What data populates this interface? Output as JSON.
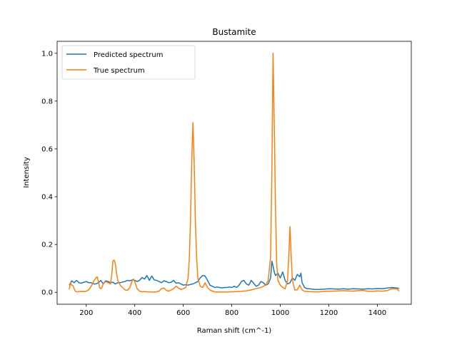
{
  "chart_data": {
    "type": "line",
    "title": "Bustamite",
    "xlabel": "Raman shift (cm^-1)",
    "ylabel": "Intensity",
    "xlim": [
      80,
      1540
    ],
    "ylim": [
      -0.05,
      1.05
    ],
    "xticks": [
      200,
      400,
      600,
      800,
      1000,
      1200,
      1400
    ],
    "yticks": [
      0.0,
      0.2,
      0.4,
      0.6,
      0.8,
      1.0
    ],
    "grid": false,
    "legend_position": "top-left",
    "series": [
      {
        "name": "Predicted spectrum",
        "color": "#1f77b4",
        "x": [
          130,
          140,
          150,
          160,
          170,
          180,
          190,
          200,
          210,
          220,
          230,
          240,
          250,
          260,
          270,
          280,
          290,
          300,
          310,
          320,
          330,
          340,
          350,
          360,
          370,
          380,
          390,
          400,
          410,
          420,
          430,
          440,
          450,
          460,
          470,
          480,
          490,
          500,
          510,
          520,
          530,
          540,
          550,
          560,
          570,
          580,
          590,
          600,
          610,
          620,
          630,
          640,
          650,
          660,
          670,
          680,
          690,
          700,
          710,
          720,
          730,
          740,
          750,
          760,
          770,
          780,
          790,
          800,
          810,
          820,
          830,
          840,
          850,
          860,
          870,
          880,
          890,
          900,
          910,
          920,
          930,
          940,
          950,
          960,
          965,
          970,
          975,
          980,
          985,
          990,
          1000,
          1010,
          1020,
          1030,
          1040,
          1050,
          1060,
          1070,
          1080,
          1085,
          1090,
          1100,
          1110,
          1120,
          1140,
          1160,
          1180,
          1200,
          1220,
          1240,
          1260,
          1280,
          1300,
          1320,
          1340,
          1360,
          1380,
          1400,
          1420,
          1440,
          1460,
          1480,
          1490
        ],
        "y": [
          0.03,
          0.048,
          0.04,
          0.05,
          0.04,
          0.038,
          0.042,
          0.045,
          0.04,
          0.04,
          0.035,
          0.035,
          0.04,
          0.05,
          0.035,
          0.048,
          0.045,
          0.04,
          0.042,
          0.035,
          0.04,
          0.04,
          0.043,
          0.045,
          0.05,
          0.048,
          0.052,
          0.05,
          0.045,
          0.05,
          0.062,
          0.055,
          0.07,
          0.05,
          0.068,
          0.052,
          0.05,
          0.045,
          0.04,
          0.048,
          0.045,
          0.04,
          0.042,
          0.05,
          0.038,
          0.04,
          0.035,
          0.03,
          0.032,
          0.03,
          0.033,
          0.035,
          0.04,
          0.045,
          0.06,
          0.07,
          0.068,
          0.05,
          0.03,
          0.025,
          0.02,
          0.022,
          0.02,
          0.018,
          0.02,
          0.02,
          0.022,
          0.02,
          0.025,
          0.02,
          0.03,
          0.045,
          0.05,
          0.035,
          0.03,
          0.05,
          0.038,
          0.025,
          0.03,
          0.045,
          0.04,
          0.03,
          0.035,
          0.06,
          0.13,
          0.11,
          0.085,
          0.07,
          0.075,
          0.08,
          0.06,
          0.085,
          0.05,
          0.035,
          0.04,
          0.06,
          0.05,
          0.075,
          0.065,
          0.08,
          0.04,
          0.02,
          0.015,
          0.015,
          0.012,
          0.012,
          0.013,
          0.015,
          0.014,
          0.013,
          0.015,
          0.013,
          0.015,
          0.014,
          0.013,
          0.015,
          0.014,
          0.016,
          0.015,
          0.018,
          0.02,
          0.018,
          0.016
        ]
      },
      {
        "name": "True spectrum",
        "color": "#ff7f0e",
        "x": [
          130,
          135,
          140,
          145,
          150,
          155,
          160,
          170,
          180,
          190,
          200,
          210,
          220,
          230,
          240,
          245,
          250,
          255,
          260,
          265,
          270,
          280,
          290,
          300,
          305,
          310,
          315,
          320,
          325,
          330,
          340,
          350,
          360,
          370,
          380,
          390,
          395,
          400,
          410,
          420,
          430,
          440,
          450,
          460,
          470,
          480,
          490,
          500,
          510,
          520,
          530,
          540,
          550,
          560,
          570,
          580,
          590,
          600,
          610,
          620,
          625,
          630,
          635,
          640,
          645,
          650,
          655,
          660,
          670,
          680,
          690,
          700,
          710,
          720,
          730,
          740,
          750,
          760,
          770,
          780,
          790,
          800,
          820,
          840,
          860,
          880,
          900,
          920,
          940,
          950,
          960,
          965,
          970,
          975,
          980,
          985,
          990,
          1000,
          1010,
          1020,
          1030,
          1035,
          1040,
          1045,
          1050,
          1060,
          1070,
          1075,
          1080,
          1090,
          1100,
          1120,
          1140,
          1160,
          1180,
          1200,
          1220,
          1240,
          1260,
          1280,
          1300,
          1320,
          1340,
          1360,
          1380,
          1400,
          1420,
          1440,
          1460,
          1480,
          1490
        ],
        "y": [
          0.012,
          0.04,
          0.03,
          0.028,
          0.015,
          0.005,
          0.002,
          0.003,
          0.004,
          0.003,
          0.005,
          0.01,
          0.025,
          0.045,
          0.06,
          0.065,
          0.045,
          0.02,
          0.015,
          0.02,
          0.035,
          0.045,
          0.04,
          0.035,
          0.07,
          0.13,
          0.135,
          0.12,
          0.08,
          0.05,
          0.03,
          0.02,
          0.01,
          0.008,
          0.02,
          0.05,
          0.055,
          0.045,
          0.015,
          0.005,
          0.002,
          0.003,
          0.002,
          0.002,
          0.001,
          0.001,
          0.002,
          0.005,
          0.015,
          0.018,
          0.008,
          0.005,
          0.01,
          0.015,
          0.025,
          0.018,
          0.012,
          0.015,
          0.02,
          0.06,
          0.15,
          0.3,
          0.55,
          0.71,
          0.55,
          0.3,
          0.15,
          0.06,
          0.025,
          0.02,
          0.04,
          0.02,
          0.01,
          0.005,
          0.002,
          0.001,
          0.001,
          0.001,
          0.001,
          0.001,
          0.002,
          0.002,
          0.003,
          0.004,
          0.006,
          0.01,
          0.015,
          0.02,
          0.03,
          0.05,
          0.15,
          0.5,
          1.0,
          0.7,
          0.35,
          0.12,
          0.05,
          0.03,
          0.02,
          0.015,
          0.05,
          0.15,
          0.275,
          0.15,
          0.05,
          0.01,
          0.01,
          0.02,
          0.03,
          0.01,
          0.004,
          0.003,
          0.002,
          0.002,
          0.004,
          0.005,
          0.005,
          0.006,
          0.007,
          0.006,
          0.005,
          0.007,
          0.008,
          0.005,
          0.004,
          0.006,
          0.005,
          0.007,
          0.015,
          0.014,
          0.005
        ]
      }
    ]
  }
}
